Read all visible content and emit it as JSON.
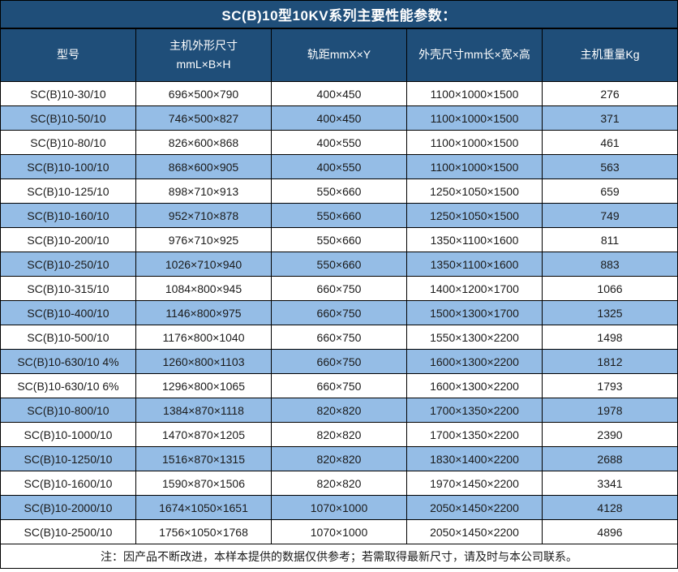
{
  "title": "SC(B)10型10KV系列主要性能参数：",
  "table": {
    "columns": [
      {
        "label": "型号"
      },
      {
        "label": "主机外形尺寸",
        "label2": "mmL×B×H"
      },
      {
        "label": "轨距mmX×Y"
      },
      {
        "label": "外壳尺寸mm长×宽×高"
      },
      {
        "label": "主机重量Kg"
      }
    ],
    "rows": [
      [
        "SC(B)10-30/10",
        "696×500×790",
        "400×450",
        "1100×1000×1500",
        "276"
      ],
      [
        "SC(B)10-50/10",
        "746×500×827",
        "400×450",
        "1100×1000×1500",
        "371"
      ],
      [
        "SC(B)10-80/10",
        "826×600×868",
        "400×550",
        "1100×1000×1500",
        "461"
      ],
      [
        "SC(B)10-100/10",
        "868×600×905",
        "400×550",
        "1100×1000×1500",
        "563"
      ],
      [
        "SC(B)10-125/10",
        "898×710×913",
        "550×660",
        "1250×1050×1500",
        "659"
      ],
      [
        "SC(B)10-160/10",
        "952×710×878",
        "550×660",
        "1250×1050×1500",
        "749"
      ],
      [
        "SC(B)10-200/10",
        "976×710×925",
        "550×660",
        "1350×1100×1600",
        "811"
      ],
      [
        "SC(B)10-250/10",
        "1026×710×940",
        "550×660",
        "1350×1100×1600",
        "883"
      ],
      [
        "SC(B)10-315/10",
        "1084×800×945",
        "660×750",
        "1400×1200×1700",
        "1066"
      ],
      [
        "SC(B)10-400/10",
        "1146×800×975",
        "660×750",
        "1500×1300×1700",
        "1325"
      ],
      [
        "SC(B)10-500/10",
        "1176×800×1040",
        "660×750",
        "1550×1300×2200",
        "1498"
      ],
      [
        "SC(B)10-630/10 4%",
        "1260×800×1103",
        "660×750",
        "1600×1300×2200",
        "1812"
      ],
      [
        "SC(B)10-630/10 6%",
        "1296×800×1065",
        "660×750",
        "1600×1300×2200",
        "1793"
      ],
      [
        "SC(B)10-800/10",
        "1384×870×1118",
        "820×820",
        "1700×1350×2200",
        "1978"
      ],
      [
        "SC(B)10-1000/10",
        "1470×870×1205",
        "820×820",
        "1700×1350×2200",
        "2390"
      ],
      [
        "SC(B)10-1250/10",
        "1516×870×1315",
        "820×820",
        "1830×1400×2200",
        "2688"
      ],
      [
        "SC(B)10-1600/10",
        "1590×870×1506",
        "820×820",
        "1970×1450×2200",
        "3341"
      ],
      [
        "SC(B)10-2000/10",
        "1674×1050×1651",
        "1070×1000",
        "2050×1450×2200",
        "4128"
      ],
      [
        "SC(B)10-2500/10",
        "1756×1050×1768",
        "1070×1000",
        "2050×1450×2200",
        "4896"
      ]
    ]
  },
  "note": "注：因产品不断改进，本样本提供的数据仅供参考；若需取得最新尺寸，请及时与本公司联系。",
  "colors": {
    "header_bg": "#1F4E79",
    "row_alt_bg": "#95BDE6",
    "border": "#000000",
    "text": "#1A1A1A",
    "header_text": "#FFFFFF"
  }
}
